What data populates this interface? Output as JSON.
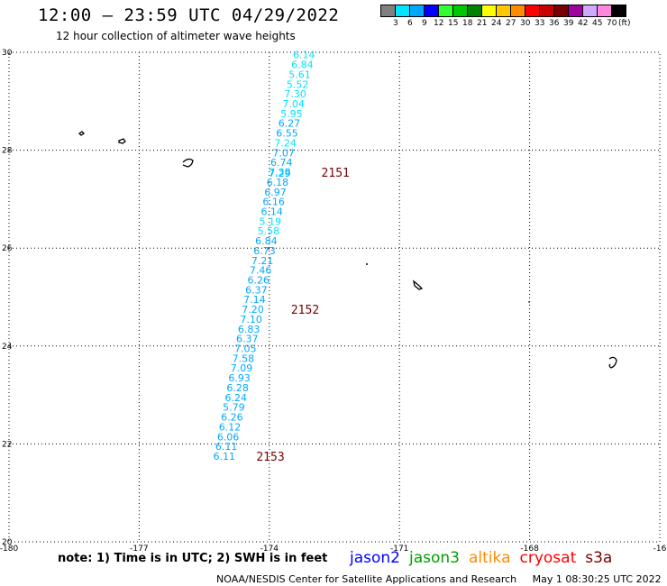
{
  "title": "12:00 – 23:59 UTC 04/29/2022",
  "subtitle": "12 hour collection of altimeter wave heights",
  "legend": {
    "unit": "(ft)",
    "colors": [
      "#808080",
      "#00e5ff",
      "#00a8ff",
      "#0000ff",
      "#32ff32",
      "#00c800",
      "#008200",
      "#ffff00",
      "#ffc800",
      "#ff8c00",
      "#ff0000",
      "#c80000",
      "#780000",
      "#a000a0",
      "#cfa8ff",
      "#ff88dd",
      "#000000"
    ],
    "labels": [
      "3",
      "6",
      "9",
      "12",
      "15",
      "18",
      "21",
      "24",
      "27",
      "30",
      "33",
      "36",
      "39",
      "42",
      "45",
      "70"
    ]
  },
  "axes": {
    "lon_ticks": [
      "-180",
      "-177",
      "-174",
      "-171",
      "-168",
      "-16"
    ],
    "lat_ticks": [
      "30",
      "28",
      "26",
      "24",
      "22",
      "20"
    ]
  },
  "track": {
    "color_light": "#00e5ff",
    "color_mid": "#00a8ff",
    "points": [
      {
        "lon": -173.2,
        "lat": 29.95,
        "swh": "6.14",
        "c": "light"
      },
      {
        "lon": -173.24,
        "lat": 29.75,
        "swh": "6.84",
        "c": "light"
      },
      {
        "lon": -173.3,
        "lat": 29.55,
        "swh": "5.61",
        "c": "light"
      },
      {
        "lon": -173.35,
        "lat": 29.35,
        "swh": "5.52",
        "c": "light"
      },
      {
        "lon": -173.4,
        "lat": 29.15,
        "swh": "7.30",
        "c": "light"
      },
      {
        "lon": -173.44,
        "lat": 28.95,
        "swh": "7.04",
        "c": "light"
      },
      {
        "lon": -173.49,
        "lat": 28.75,
        "swh": "5.95",
        "c": "light"
      },
      {
        "lon": -173.54,
        "lat": 28.55,
        "swh": "6.27",
        "c": "mid"
      },
      {
        "lon": -173.59,
        "lat": 28.35,
        "swh": "6.55",
        "c": "mid"
      },
      {
        "lon": -173.63,
        "lat": 28.15,
        "swh": "7.24",
        "c": "light"
      },
      {
        "lon": -173.67,
        "lat": 27.95,
        "swh": "7.07",
        "c": "mid"
      },
      {
        "lon": -173.72,
        "lat": 27.75,
        "swh": "6.74",
        "c": "mid"
      },
      {
        "lon": -173.76,
        "lat": 27.56,
        "swh": "7.38",
        "c": "light"
      },
      {
        "lon": -173.76,
        "lat": 27.53,
        "swh": "7.29",
        "c": "mid"
      },
      {
        "lon": -173.81,
        "lat": 27.35,
        "swh": "6.18",
        "c": "mid"
      },
      {
        "lon": -173.86,
        "lat": 27.15,
        "swh": "6.97",
        "c": "mid"
      },
      {
        "lon": -173.9,
        "lat": 26.95,
        "swh": "6.16",
        "c": "mid"
      },
      {
        "lon": -173.94,
        "lat": 26.75,
        "swh": "6.14",
        "c": "mid"
      },
      {
        "lon": -173.98,
        "lat": 26.55,
        "swh": "5.19",
        "c": "light"
      },
      {
        "lon": -174.02,
        "lat": 26.35,
        "swh": "5.58",
        "c": "light"
      },
      {
        "lon": -174.07,
        "lat": 26.15,
        "swh": "6.84",
        "c": "mid"
      },
      {
        "lon": -174.11,
        "lat": 25.95,
        "swh": "6.73",
        "c": "mid"
      },
      {
        "lon": -174.16,
        "lat": 25.75,
        "swh": "7.21",
        "c": "mid"
      },
      {
        "lon": -174.2,
        "lat": 25.55,
        "swh": "7.46",
        "c": "mid"
      },
      {
        "lon": -174.25,
        "lat": 25.35,
        "swh": "6.26",
        "c": "mid"
      },
      {
        "lon": -174.3,
        "lat": 25.15,
        "swh": "6.37",
        "c": "mid"
      },
      {
        "lon": -174.34,
        "lat": 24.95,
        "swh": "7.14",
        "c": "mid"
      },
      {
        "lon": -174.38,
        "lat": 24.75,
        "swh": "7.20",
        "c": "mid"
      },
      {
        "lon": -174.42,
        "lat": 24.55,
        "swh": "7.10",
        "c": "mid"
      },
      {
        "lon": -174.47,
        "lat": 24.35,
        "swh": "6.83",
        "c": "mid"
      },
      {
        "lon": -174.51,
        "lat": 24.15,
        "swh": "6.37",
        "c": "mid"
      },
      {
        "lon": -174.55,
        "lat": 23.95,
        "swh": "7.05",
        "c": "mid"
      },
      {
        "lon": -174.6,
        "lat": 23.75,
        "swh": "7.58",
        "c": "mid"
      },
      {
        "lon": -174.64,
        "lat": 23.55,
        "swh": "7.09",
        "c": "mid"
      },
      {
        "lon": -174.69,
        "lat": 23.35,
        "swh": "6.93",
        "c": "mid"
      },
      {
        "lon": -174.73,
        "lat": 23.15,
        "swh": "6.28",
        "c": "mid"
      },
      {
        "lon": -174.77,
        "lat": 22.95,
        "swh": "6.24",
        "c": "mid"
      },
      {
        "lon": -174.82,
        "lat": 22.75,
        "swh": "5.79",
        "c": "mid"
      },
      {
        "lon": -174.86,
        "lat": 22.55,
        "swh": "6.26",
        "c": "mid"
      },
      {
        "lon": -174.91,
        "lat": 22.35,
        "swh": "6.12",
        "c": "mid"
      },
      {
        "lon": -174.95,
        "lat": 22.15,
        "swh": "6.06",
        "c": "mid"
      },
      {
        "lon": -174.99,
        "lat": 21.95,
        "swh": "6.11",
        "c": "mid"
      },
      {
        "lon": -175.04,
        "lat": 21.75,
        "swh": "6.11",
        "c": "mid"
      }
    ],
    "time_labels": [
      {
        "lon": -172.8,
        "lat": 27.55,
        "text": "2151"
      },
      {
        "lon": -173.5,
        "lat": 24.75,
        "text": "2152"
      },
      {
        "lon": -174.3,
        "lat": 21.75,
        "text": "2153"
      }
    ],
    "time_color": "#780000"
  },
  "note": "note:  1) Time is in UTC;  2) SWH is in feet",
  "missions": [
    {
      "name": "jason2",
      "color": "#0000ff"
    },
    {
      "name": "jason3",
      "color": "#00a000"
    },
    {
      "name": "altika",
      "color": "#ff8c00"
    },
    {
      "name": "cryosat",
      "color": "#ff0000"
    },
    {
      "name": "s3a",
      "color": "#780000"
    }
  ],
  "footer": {
    "credit": "NOAA/NESDIS Center for Satellite Applications and Research",
    "timestamp": "May  1 08:30:25 UTC 2022"
  }
}
